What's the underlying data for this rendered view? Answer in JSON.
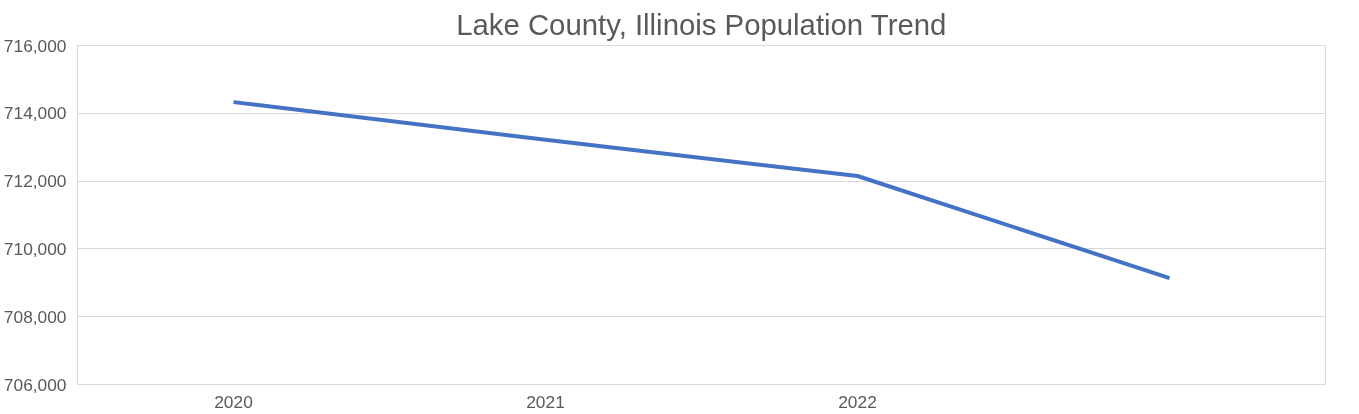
{
  "chart_data": {
    "type": "line",
    "title": "Lake County, Illinois Population Trend",
    "categories": [
      "2020",
      "2021",
      "2022",
      null
    ],
    "series": [
      {
        "color": "#4472c4",
        "values": [
          714330,
          713220,
          712150,
          709140
        ]
      }
    ],
    "ylim": [
      706000,
      716000
    ],
    "yticks": [
      {
        "value": 706000,
        "label": "706,000"
      },
      {
        "value": 708000,
        "label": "708,000"
      },
      {
        "value": 710000,
        "label": "710,000"
      },
      {
        "value": 712000,
        "label": "712,000"
      },
      {
        "value": 714000,
        "label": "714,000"
      },
      {
        "value": 716000,
        "label": "716,000"
      }
    ],
    "grid": "y",
    "marker": "none",
    "line_style": "solid"
  }
}
